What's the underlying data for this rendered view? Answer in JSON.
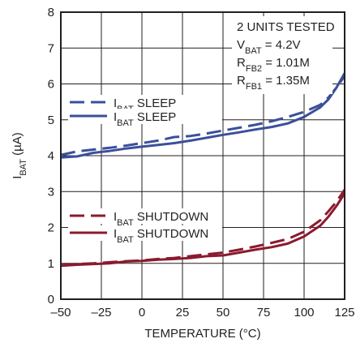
{
  "chart_data": {
    "type": "line",
    "title": "",
    "xlabel": "TEMPERATURE (°C)",
    "ylabel": {
      "main": "I",
      "sub": "BAT",
      "rest": " (µA)"
    },
    "xlim": [
      -50,
      125
    ],
    "ylim": [
      0,
      8
    ],
    "xticks": [
      -50,
      -25,
      0,
      25,
      50,
      75,
      100,
      125
    ],
    "xtick_labels": [
      "–50",
      "–25",
      "0",
      "25",
      "50",
      "75",
      "100",
      "125"
    ],
    "yticks": [
      0,
      1,
      2,
      3,
      4,
      5,
      6,
      7,
      8
    ],
    "grid": true,
    "annotation": [
      {
        "main": "2 UNITS TESTED",
        "sub": "",
        "rest": ""
      },
      {
        "main": "V",
        "sub": "BAT",
        "rest": " = 4.2V"
      },
      {
        "main": "R",
        "sub": "FB2",
        "rest": " = 1.01M"
      },
      {
        "main": "R",
        "sub": "FB1",
        "rest": " = 1.35M"
      }
    ],
    "series": [
      {
        "name": {
          "main": "I",
          "sub": "BAT",
          "rest": " SLEEP"
        },
        "group": "sleep",
        "style": "dashed",
        "color": "#3b4f9b",
        "x": [
          -50,
          -40,
          -30,
          -20,
          -10,
          0,
          10,
          20,
          30,
          40,
          50,
          60,
          70,
          80,
          90,
          100,
          110,
          115,
          120,
          125
        ],
        "y": [
          4.02,
          4.12,
          4.17,
          4.22,
          4.28,
          4.35,
          4.42,
          4.52,
          4.55,
          4.62,
          4.7,
          4.78,
          4.86,
          4.96,
          5.08,
          5.22,
          5.42,
          5.62,
          5.9,
          6.22
        ]
      },
      {
        "name": {
          "main": "I",
          "sub": "BAT",
          "rest": " SLEEP"
        },
        "group": "sleep",
        "style": "solid",
        "color": "#3b4f9b",
        "x": [
          -50,
          -40,
          -30,
          -20,
          -10,
          0,
          10,
          20,
          30,
          40,
          50,
          60,
          70,
          80,
          90,
          100,
          110,
          115,
          120,
          125
        ],
        "y": [
          3.95,
          3.98,
          4.08,
          4.13,
          4.2,
          4.25,
          4.3,
          4.35,
          4.42,
          4.5,
          4.58,
          4.65,
          4.73,
          4.8,
          4.9,
          5.08,
          5.35,
          5.57,
          5.9,
          6.3
        ]
      },
      {
        "name": {
          "main": "I",
          "sub": "BAT",
          "rest": " SHUTDOWN"
        },
        "group": "shutdown",
        "style": "dashed",
        "color": "#8b1a2f",
        "x": [
          -50,
          -40,
          -30,
          -20,
          -10,
          0,
          10,
          20,
          30,
          40,
          50,
          60,
          70,
          80,
          90,
          100,
          110,
          115,
          120,
          125
        ],
        "y": [
          0.95,
          0.98,
          1.0,
          1.03,
          1.06,
          1.08,
          1.12,
          1.15,
          1.2,
          1.25,
          1.3,
          1.38,
          1.47,
          1.57,
          1.68,
          1.88,
          2.2,
          2.45,
          2.72,
          3.05
        ]
      },
      {
        "name": {
          "main": "I",
          "sub": "BAT",
          "rest": " SHUTDOWN"
        },
        "group": "shutdown",
        "style": "solid",
        "color": "#8b1a2f",
        "x": [
          -50,
          -40,
          -30,
          -20,
          -10,
          0,
          10,
          20,
          30,
          40,
          50,
          60,
          70,
          80,
          90,
          100,
          110,
          115,
          120,
          125
        ],
        "y": [
          0.93,
          0.96,
          0.98,
          1.0,
          1.05,
          1.07,
          1.1,
          1.12,
          1.15,
          1.2,
          1.22,
          1.3,
          1.38,
          1.45,
          1.55,
          1.75,
          2.05,
          2.3,
          2.6,
          2.95
        ]
      }
    ]
  }
}
